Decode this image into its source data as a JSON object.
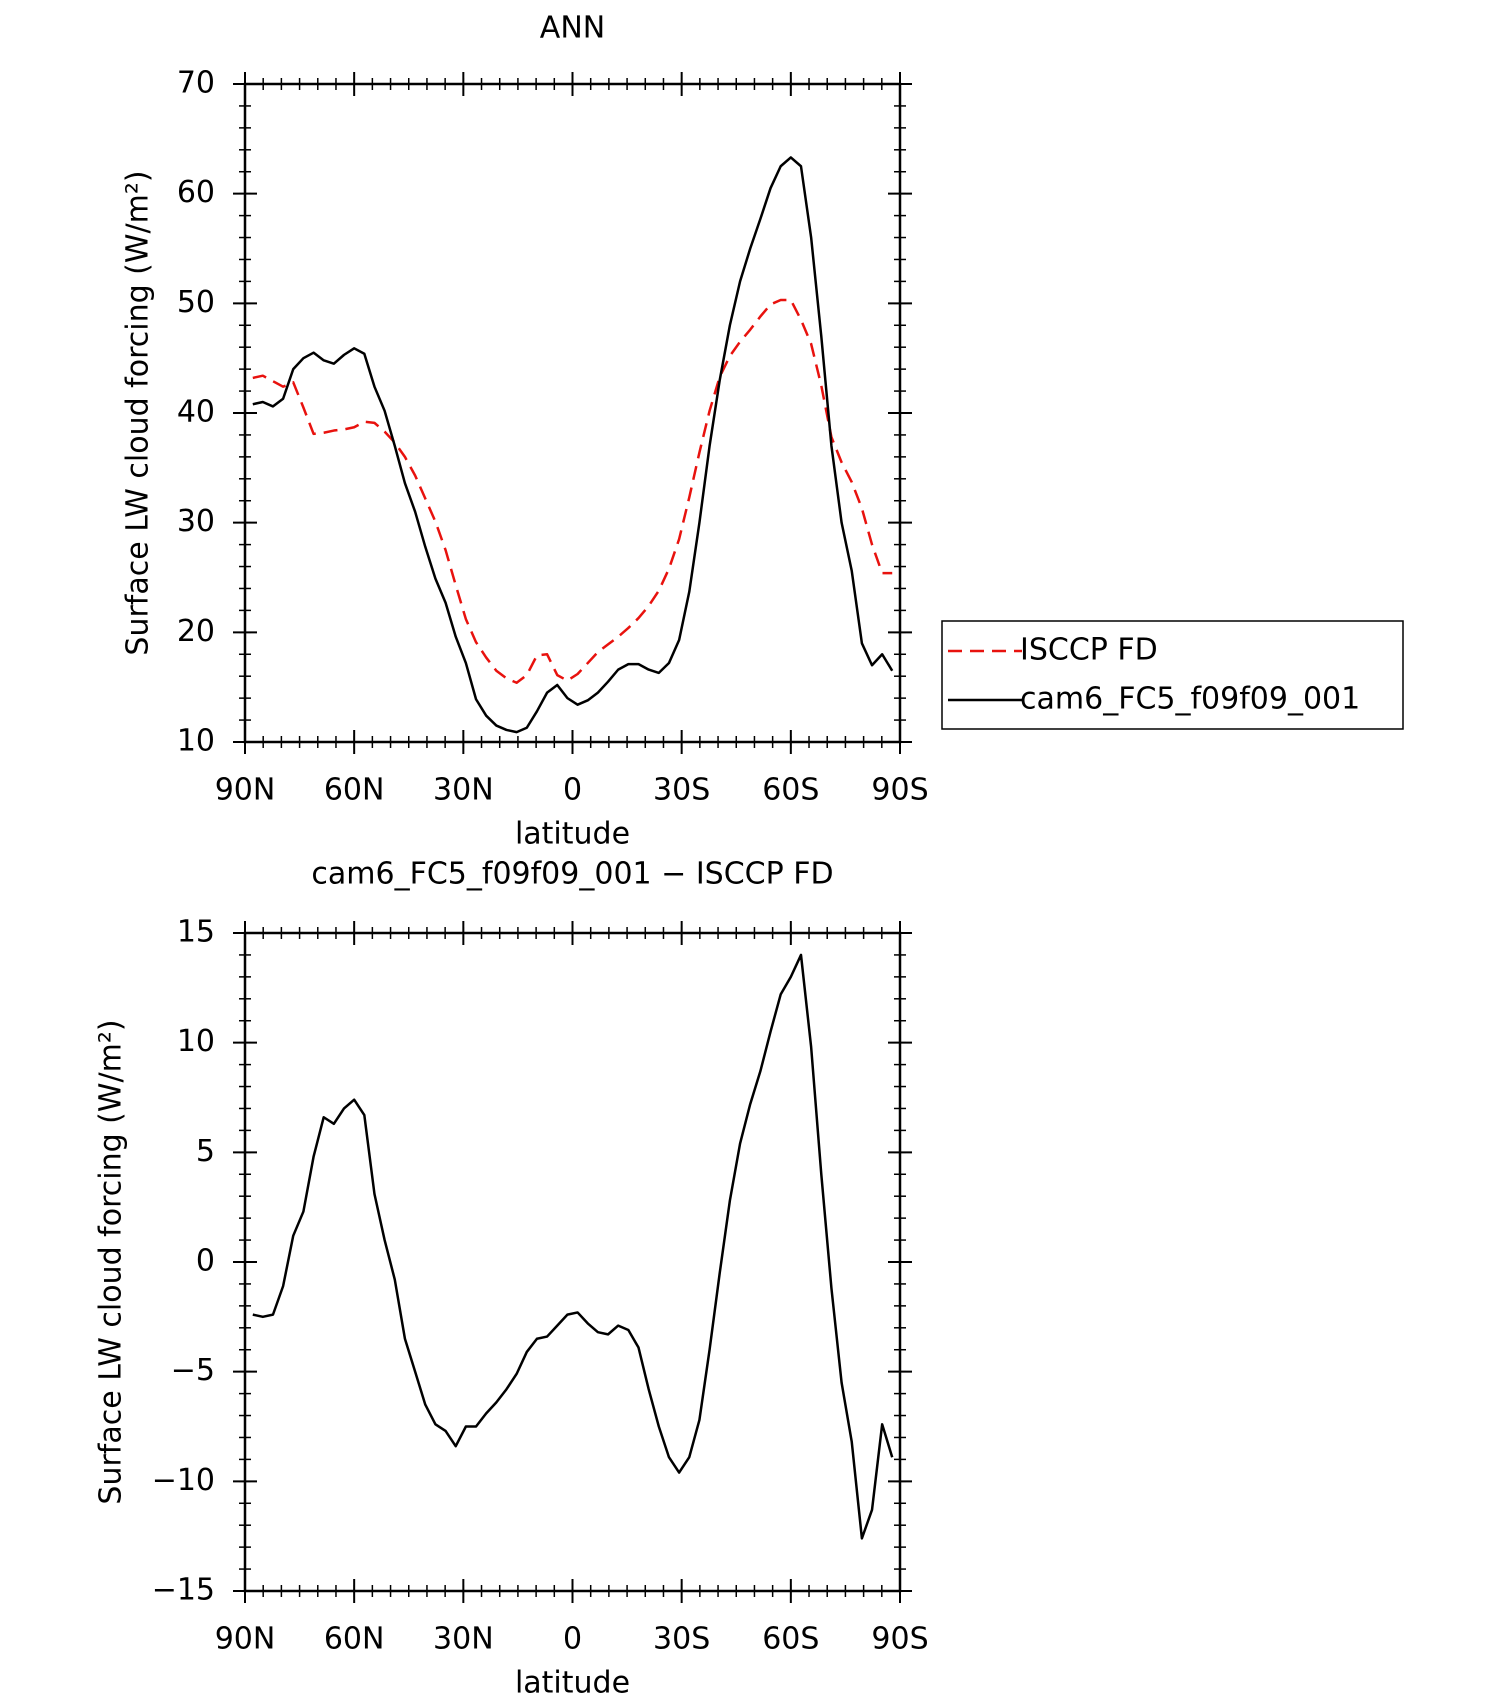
{
  "chart_data": [
    {
      "type": "line",
      "title": "ANN",
      "xlabel": "latitude",
      "ylabel": "Surface LW cloud forcing (W/m²)",
      "xlim": [
        90,
        -90
      ],
      "xticks": [
        {
          "value": 90,
          "label": "90N"
        },
        {
          "value": 60,
          "label": "60N"
        },
        {
          "value": 30,
          "label": "30N"
        },
        0,
        {
          "value": -30,
          "label": "30S"
        },
        {
          "value": -60,
          "label": "60S"
        },
        {
          "value": -90,
          "label": "90S"
        }
      ],
      "ylim": [
        10,
        70
      ],
      "yticks": [
        10,
        20,
        30,
        40,
        50,
        60,
        70
      ],
      "legend": "outside-right",
      "x": [
        87.86,
        85.1,
        82.31,
        79.53,
        76.74,
        73.95,
        71.16,
        68.37,
        65.58,
        62.79,
        60.0,
        57.21,
        54.42,
        51.63,
        48.84,
        46.05,
        43.25,
        40.46,
        37.67,
        34.88,
        32.09,
        29.3,
        26.51,
        23.72,
        20.93,
        18.14,
        15.35,
        12.56,
        9.77,
        6.98,
        4.19,
        1.4,
        -1.4,
        -4.19,
        -6.98,
        -9.77,
        -12.56,
        -15.35,
        -18.14,
        -20.93,
        -23.72,
        -26.51,
        -29.3,
        -32.09,
        -34.88,
        -37.67,
        -40.46,
        -43.25,
        -46.05,
        -48.84,
        -51.63,
        -54.42,
        -57.21,
        -60.0,
        -62.79,
        -65.58,
        -68.37,
        -71.16,
        -73.95,
        -76.74,
        -79.53,
        -82.31,
        -85.1,
        -87.86
      ],
      "series": [
        {
          "name": "ISCCP FD",
          "color": "#e8120e",
          "dash": true,
          "values": [
            43.2,
            43.4,
            42.9,
            42.4,
            42.8,
            40.5,
            38.1,
            38.2,
            38.4,
            38.5,
            38.7,
            39.2,
            39.1,
            38.3,
            37.3,
            36.0,
            34.3,
            32.2,
            30.1,
            27.5,
            24.3,
            21.2,
            19.1,
            17.7,
            16.5,
            15.8,
            15.4,
            16.1,
            17.9,
            18.0,
            16.1,
            15.6,
            16.2,
            17.2,
            18.2,
            18.9,
            19.6,
            20.4,
            21.3,
            22.4,
            23.8,
            25.8,
            28.5,
            32.3,
            36.4,
            40.2,
            43.3,
            45.2,
            46.5,
            47.6,
            48.8,
            49.9,
            50.3,
            50.3,
            48.5,
            46.3,
            42.5,
            37.8,
            35.5,
            33.7,
            31.3,
            28.0,
            25.4,
            25.4
          ]
        },
        {
          "name": "cam6_FC5_f09f09_001",
          "color": "#000000",
          "dash": false,
          "values": [
            40.8,
            41.0,
            40.6,
            41.3,
            44.0,
            45.0,
            45.5,
            44.8,
            44.5,
            45.3,
            45.9,
            45.4,
            42.4,
            40.2,
            37.0,
            33.6,
            31.0,
            27.8,
            24.9,
            22.7,
            19.6,
            17.2,
            13.9,
            12.4,
            11.5,
            11.1,
            10.9,
            11.3,
            12.8,
            14.5,
            15.2,
            14.0,
            13.4,
            13.8,
            14.5,
            15.5,
            16.6,
            17.1,
            17.1,
            16.6,
            16.3,
            17.2,
            19.3,
            23.7,
            30.0,
            37.0,
            43.0,
            48.0,
            52.0,
            55.0,
            57.7,
            60.5,
            62.5,
            63.3,
            62.5,
            56.0,
            47.0,
            37.0,
            30.0,
            25.6,
            19.0,
            17.0,
            18.0,
            16.5
          ]
        }
      ]
    },
    {
      "type": "line",
      "title": "cam6_FC5_f09f09_001 − ISCCP FD",
      "xlabel": "latitude",
      "ylabel": "Surface LW cloud forcing (W/m²)",
      "xlim": [
        90,
        -90
      ],
      "xticks": [
        {
          "value": 90,
          "label": "90N"
        },
        {
          "value": 60,
          "label": "60N"
        },
        {
          "value": 30,
          "label": "30N"
        },
        0,
        {
          "value": -30,
          "label": "30S"
        },
        {
          "value": -60,
          "label": "60S"
        },
        {
          "value": -90,
          "label": "90S"
        }
      ],
      "ylim": [
        -15,
        15
      ],
      "yticks": [
        {
          "value": -15,
          "label": "−15"
        },
        {
          "value": -10,
          "label": "−10"
        },
        {
          "value": -5,
          "label": "−5"
        },
        0,
        5,
        10,
        15
      ],
      "x": [
        87.86,
        85.1,
        82.31,
        79.53,
        76.74,
        73.95,
        71.16,
        68.37,
        65.58,
        62.79,
        60.0,
        57.21,
        54.42,
        51.63,
        48.84,
        46.05,
        43.25,
        40.46,
        37.67,
        34.88,
        32.09,
        29.3,
        26.51,
        23.72,
        20.93,
        18.14,
        15.35,
        12.56,
        9.77,
        6.98,
        4.19,
        1.4,
        -1.4,
        -4.19,
        -6.98,
        -9.77,
        -12.56,
        -15.35,
        -18.14,
        -20.93,
        -23.72,
        -26.51,
        -29.3,
        -32.09,
        -34.88,
        -37.67,
        -40.46,
        -43.25,
        -46.05,
        -48.84,
        -51.63,
        -54.42,
        -57.21,
        -60.0,
        -62.79,
        -65.58,
        -68.37,
        -71.16,
        -73.95,
        -76.74,
        -79.53,
        -82.31,
        -85.1,
        -87.86
      ],
      "series": [
        {
          "color": "#000000",
          "dash": false,
          "values": [
            -2.4,
            -2.5,
            -2.4,
            -1.1,
            1.2,
            2.3,
            4.8,
            6.6,
            6.3,
            7.0,
            7.4,
            6.7,
            3.1,
            1.0,
            -0.8,
            -3.5,
            -5.0,
            -6.5,
            -7.4,
            -7.7,
            -8.4,
            -7.5,
            -7.5,
            -6.9,
            -6.4,
            -5.8,
            -5.1,
            -4.1,
            -3.5,
            -3.4,
            -2.9,
            -2.4,
            -2.3,
            -2.8,
            -3.2,
            -3.3,
            -2.9,
            -3.1,
            -3.9,
            -5.8,
            -7.5,
            -8.9,
            -9.6,
            -8.9,
            -7.2,
            -4.0,
            -0.5,
            2.8,
            5.4,
            7.2,
            8.7,
            10.5,
            12.2,
            13.0,
            14.0,
            9.8,
            4.0,
            -1.2,
            -5.5,
            -8.2,
            -12.6,
            -11.3,
            -7.4,
            -8.9
          ]
        }
      ]
    }
  ]
}
